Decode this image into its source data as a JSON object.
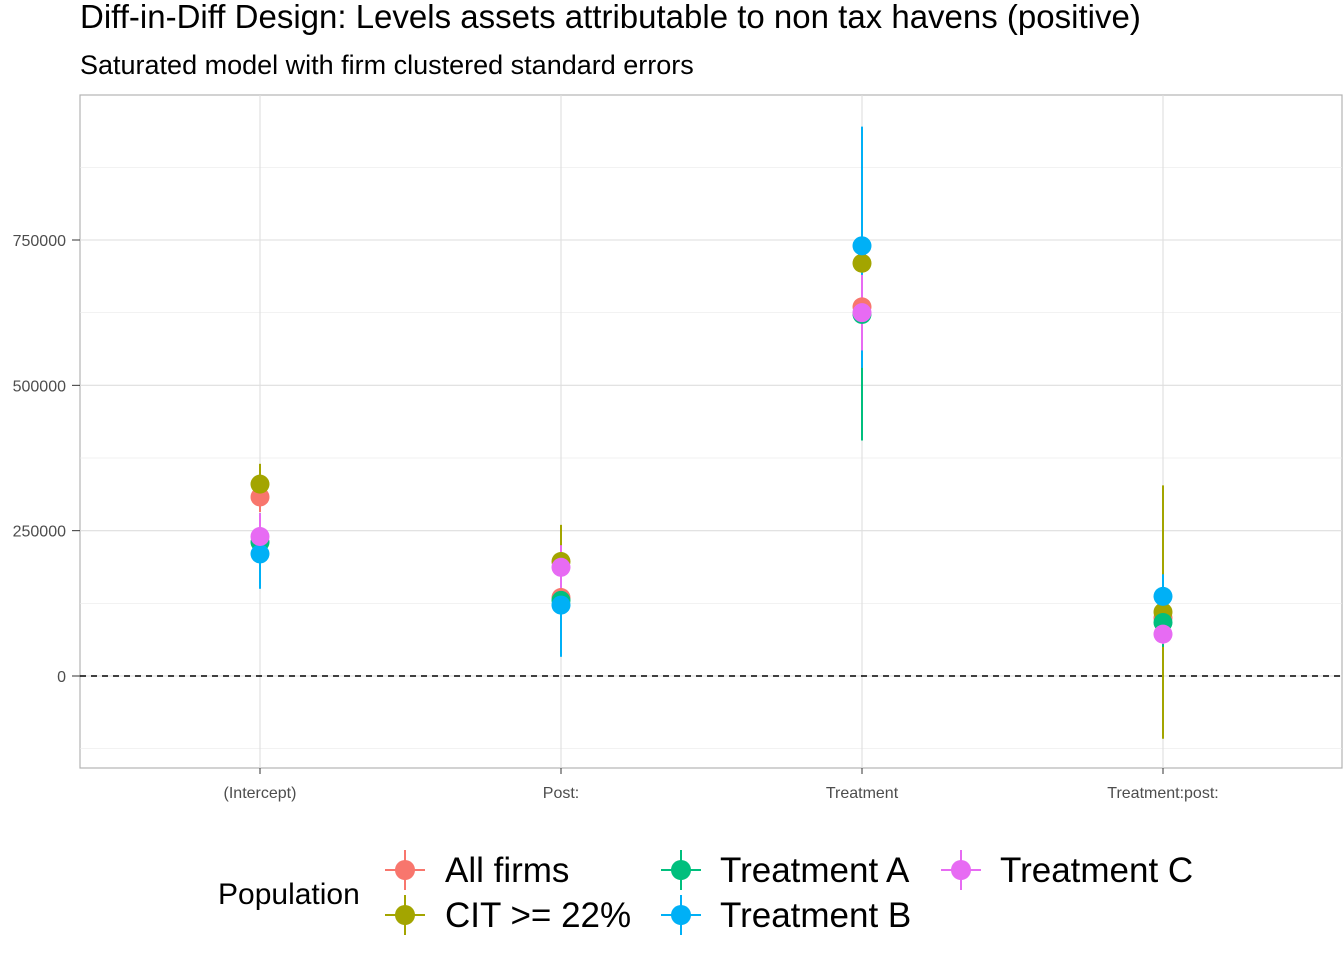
{
  "chart_data": {
    "type": "scatter",
    "title": "Diff-in-Diff Design: Levels assets attributable to non tax havens (positive)",
    "subtitle": "Saturated model with firm clustered standard errors",
    "xlabel": "",
    "ylabel": "",
    "categories": [
      "(Intercept)",
      "Post:",
      "Treatment",
      "Treatment:post:"
    ],
    "ylim": [
      -120000,
      1000000
    ],
    "yticks": [
      0,
      250000,
      500000,
      750000
    ],
    "ytick_labels": [
      "0",
      "250000",
      "500000",
      "750000"
    ],
    "grid": true,
    "reference_line": {
      "y": 0,
      "style": "dashed"
    },
    "legend": {
      "title": "Population",
      "position": "bottom"
    },
    "series": [
      {
        "name": "All firms",
        "color": "#F8766D",
        "estimates": [
          308000,
          135000,
          635000,
          100000
        ],
        "ci_low": [
          282000,
          100000,
          480000,
          0
        ],
        "ci_high": [
          335000,
          175000,
          790000,
          200000
        ]
      },
      {
        "name": "CIT >= 22%",
        "color": "#A3A500",
        "estimates": [
          330000,
          197000,
          710000,
          110000
        ],
        "ci_low": [
          295000,
          135000,
          480000,
          -108000
        ],
        "ci_high": [
          365000,
          260000,
          935000,
          328000
        ]
      },
      {
        "name": "Treatment A",
        "color": "#00BF7D",
        "estimates": [
          230000,
          130000,
          622000,
          92000
        ],
        "ci_low": [
          180000,
          80000,
          405000,
          50000
        ],
        "ci_high": [
          280000,
          180000,
          840000,
          135000
        ]
      },
      {
        "name": "Treatment B",
        "color": "#00B0F6",
        "estimates": [
          210000,
          122000,
          740000,
          137000
        ],
        "ci_low": [
          150000,
          33000,
          530000,
          100000
        ],
        "ci_high": [
          270000,
          210000,
          945000,
          175000
        ]
      },
      {
        "name": "Treatment C",
        "color": "#E76BF3",
        "estimates": [
          240000,
          187000,
          625000,
          72000
        ],
        "ci_low": [
          200000,
          150000,
          560000,
          55000
        ],
        "ci_high": [
          280000,
          225000,
          690000,
          90000
        ]
      }
    ]
  }
}
